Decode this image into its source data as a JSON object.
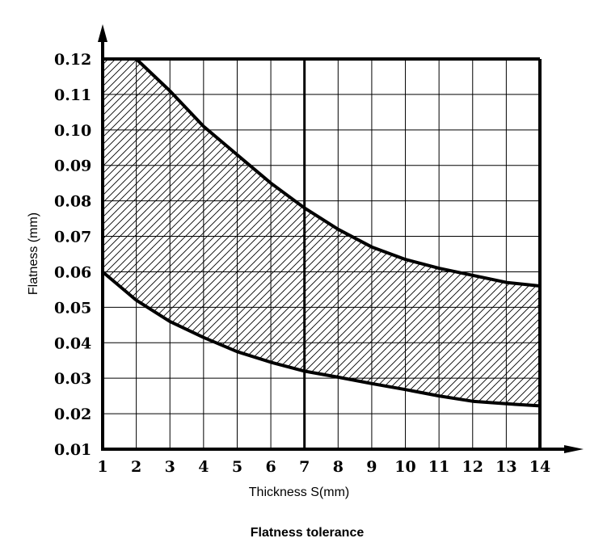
{
  "chart_data": {
    "type": "area",
    "title": "Flatness tolerance",
    "xlabel": "Thickness S(mm)",
    "ylabel": "Flatness (mm)",
    "xlim": [
      1,
      14
    ],
    "ylim": [
      0.01,
      0.12
    ],
    "x_ticks": [
      1,
      2,
      3,
      4,
      5,
      6,
      7,
      8,
      9,
      10,
      11,
      12,
      13,
      14
    ],
    "y_ticks": [
      "0.01",
      "0.02",
      "0.03",
      "0.04",
      "0.05",
      "0.06",
      "0.07",
      "0.08",
      "0.09",
      "0.10",
      "0.11",
      "0.12"
    ],
    "grid": true,
    "emphasized_gridline_x": 7,
    "series": [
      {
        "x": [
          1,
          2,
          3,
          4,
          5,
          6,
          7,
          8,
          9,
          10,
          11,
          12,
          13,
          14
        ],
        "values": [
          0.12,
          0.12,
          0.111,
          0.101,
          0.093,
          0.085,
          0.078,
          0.072,
          0.067,
          0.0635,
          0.061,
          0.059,
          0.057,
          0.056
        ]
      },
      {
        "x": [
          1,
          2,
          3,
          4,
          5,
          6,
          7,
          8,
          9,
          10,
          11,
          12,
          13,
          14
        ],
        "values": [
          0.06,
          0.052,
          0.046,
          0.0415,
          0.0375,
          0.0345,
          0.032,
          0.0303,
          0.0285,
          0.0268,
          0.025,
          0.0235,
          0.0228,
          0.0222
        ]
      }
    ],
    "fill_between_series": true,
    "colors": {
      "line": "#000000",
      "grid": "#000000",
      "hatch": "#000000"
    }
  }
}
